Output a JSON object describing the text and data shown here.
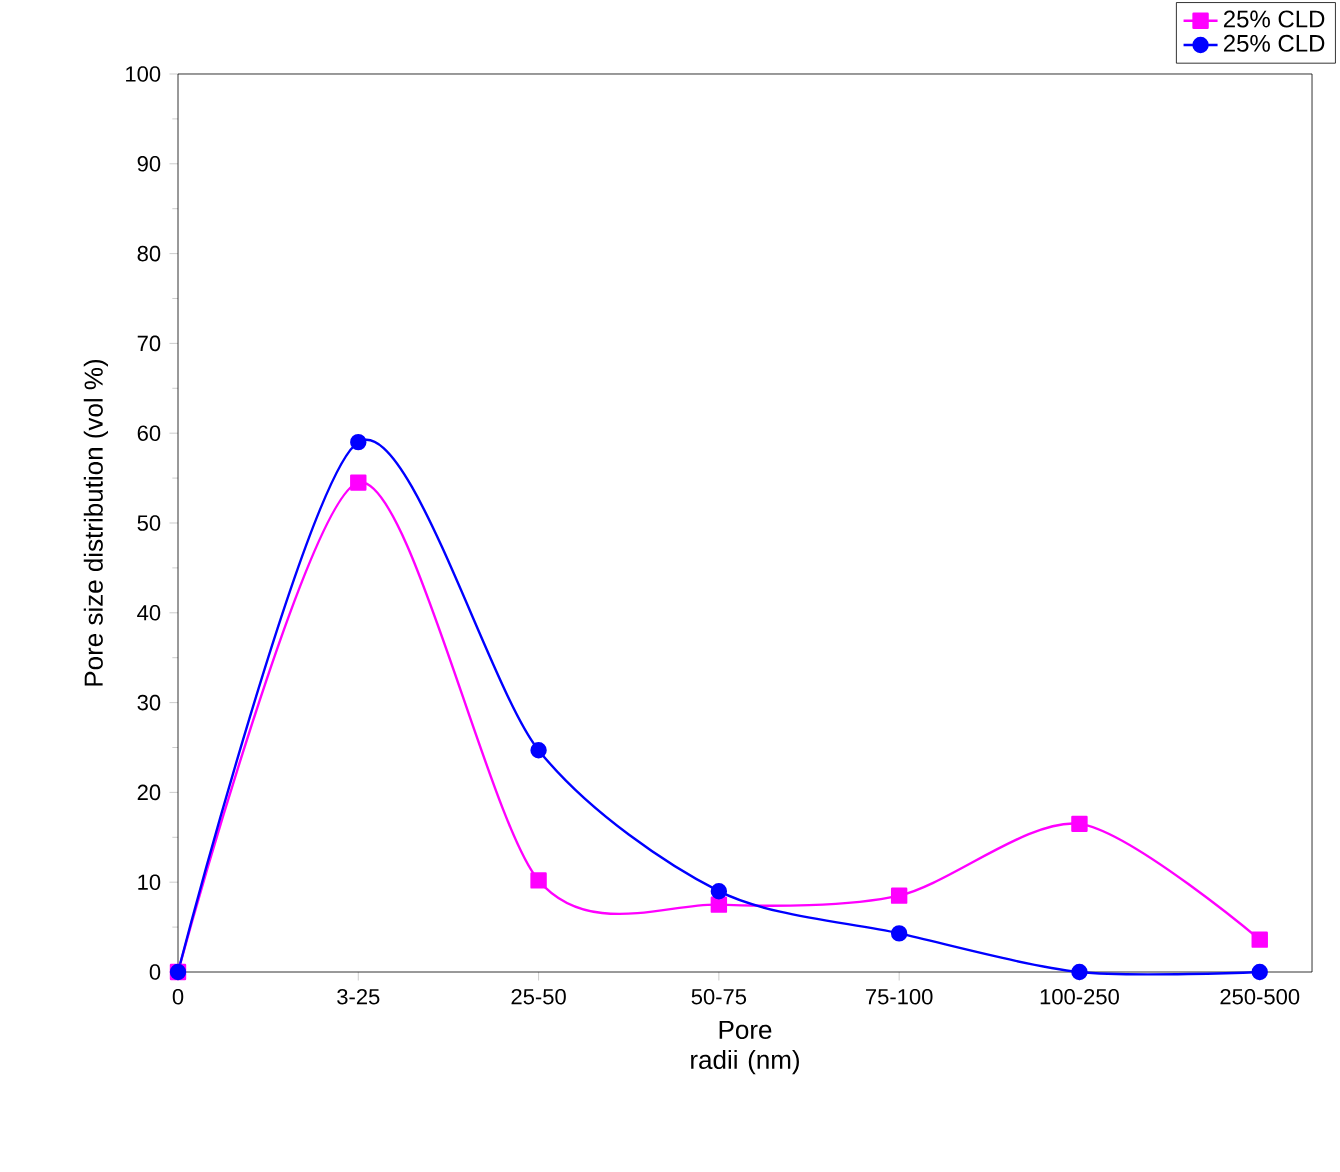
{
  "chart_data": {
    "type": "line",
    "xlabel": "Pore radii (nm)",
    "ylabel": "Pore size distribution (vol %)",
    "categories": [
      "0",
      "3-25",
      "25-50",
      "50-75",
      "75-100",
      "100-250",
      "250-500"
    ],
    "ylim": [
      0,
      100
    ],
    "yticks": [
      0,
      10,
      20,
      30,
      40,
      50,
      60,
      70,
      80,
      90,
      100
    ],
    "grid": false,
    "legend": "top right",
    "series": [
      {
        "name": "25% CLD",
        "color": "#ff00ff",
        "marker": "square",
        "values": [
          0,
          54.5,
          10.2,
          7.5,
          8.5,
          16.5,
          3.6
        ]
      },
      {
        "name": "25% CLD",
        "color": "#0000ff",
        "marker": "circle",
        "values": [
          0,
          59,
          24.7,
          9,
          4.3,
          0,
          0
        ]
      }
    ]
  }
}
